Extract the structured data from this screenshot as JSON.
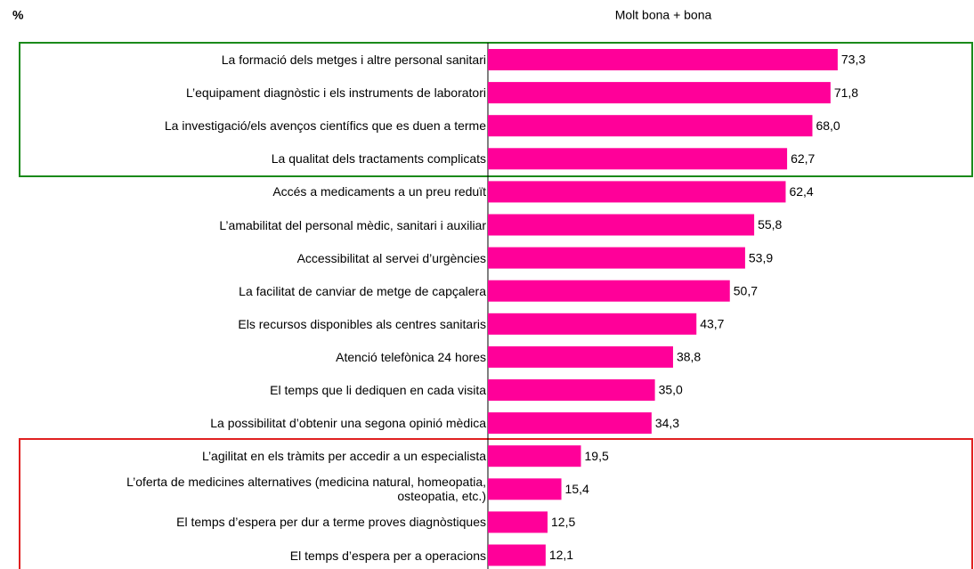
{
  "chart_data": {
    "type": "bar",
    "orientation": "horizontal",
    "title": "%",
    "categories": [
      "La formació dels metges i altre personal sanitari",
      "L’equipament diagnòstic i els instruments de laboratori",
      "La investigació/els avenços científics que es duen a terme",
      "La qualitat dels tractaments complicats",
      "Accés a medicaments a un preu reduït",
      "L’amabilitat del personal mèdic, sanitari i auxiliar",
      "Accessibilitat al servei d’urgències",
      "La facilitat de canviar de metge de capçalera",
      "Els recursos disponibles als centres sanitaris",
      "Atenció telefònica 24 hores",
      "El temps que li dediquen en cada visita",
      "La possibilitat d’obtenir una segona opinió mèdica",
      "L’agilitat en els tràmits per accedir a un especialista",
      "L’oferta de medicines alternatives (medicina natural, homeopatia,\nosteopatia, etc.)",
      "El temps d’espera per dur a terme proves diagnòstiques",
      "El temps d’espera per a operacions"
    ],
    "series": [
      {
        "name": "Molt bona + bona",
        "color": "#ff0099",
        "values": [
          73.3,
          71.8,
          68.0,
          62.7,
          62.4,
          55.8,
          53.9,
          50.7,
          43.7,
          38.8,
          35.0,
          34.3,
          19.5,
          15.4,
          12.5,
          12.1
        ],
        "value_labels": [
          "73,3",
          "71,8",
          "68,0",
          "62,7",
          "62,4",
          "55,8",
          "53,9",
          "50,7",
          "43,7",
          "38,8",
          "35,0",
          "34,3",
          "19,5",
          "15,4",
          "12,5",
          "12,1"
        ]
      }
    ],
    "xlim": [
      0,
      100
    ]
  }
}
